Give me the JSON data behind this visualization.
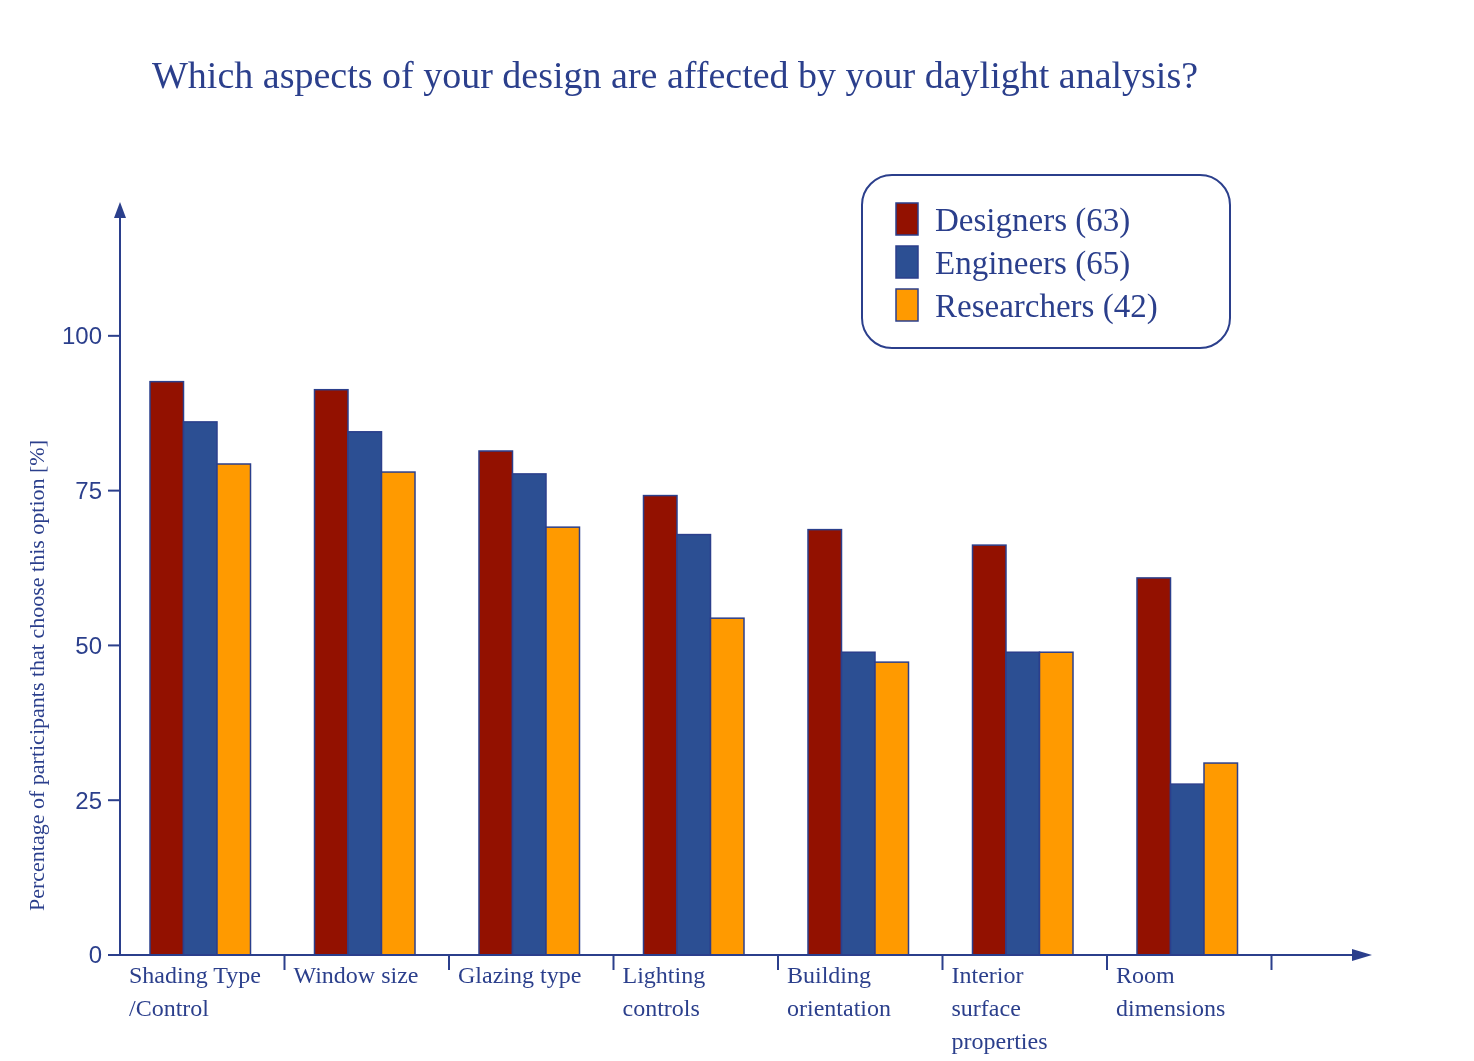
{
  "chart_data": {
    "type": "bar",
    "title": "Which aspects of your design are affected by your daylight analysis?",
    "ylabel": "Percentage of participants that choose this option [%]",
    "categories": [
      "Shading Type /Control",
      "Window size",
      "Glazing type",
      "Lighting controls",
      "Building orientation",
      "Interior surface properties",
      "Room dimensions"
    ],
    "series": [
      {
        "name": "Designers (63)",
        "color": "#931100",
        "values": [
          92.6,
          91.3,
          81.4,
          74.2,
          68.7,
          66.2,
          60.9
        ]
      },
      {
        "name": "Engineers (65)",
        "color": "#2c4f93",
        "values": [
          86.1,
          84.5,
          77.7,
          67.9,
          48.9,
          48.9,
          27.6
        ]
      },
      {
        "name": "Researchers (42)",
        "color": "#ff9a00",
        "values": [
          79.3,
          78.0,
          69.1,
          54.4,
          47.3,
          48.9,
          31.0
        ]
      }
    ],
    "ylim": [
      0,
      120
    ],
    "yticks": [
      0,
      25,
      50,
      75,
      100
    ],
    "grid": false,
    "legend": "top right"
  }
}
